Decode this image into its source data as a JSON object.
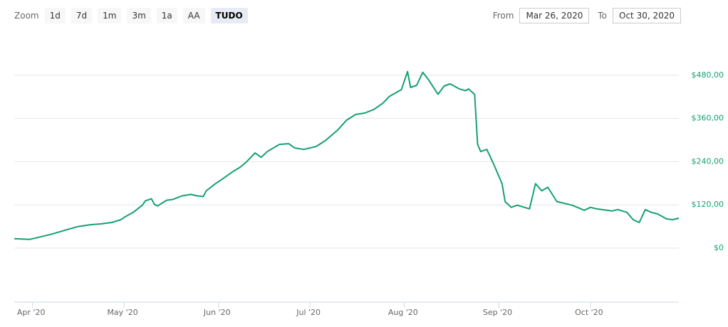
{
  "toolbar": {
    "zoom_label": "Zoom",
    "buttons": [
      "1d",
      "7d",
      "1m",
      "3m",
      "1a",
      "AA",
      "TUDO"
    ],
    "selected": 6,
    "from_label": "From",
    "from_value": "Mar 26, 2020",
    "to_label": "To",
    "to_value": "Oct 30, 2020"
  },
  "chart_data": {
    "type": "line",
    "x": [
      "2020-03-26",
      "2020-03-31",
      "2020-04-02",
      "2020-04-07",
      "2020-04-11",
      "2020-04-16",
      "2020-04-20",
      "2020-04-23",
      "2020-04-27",
      "2020-04-30",
      "2020-05-01",
      "2020-05-04",
      "2020-05-07",
      "2020-05-08",
      "2020-05-10",
      "2020-05-11",
      "2020-05-12",
      "2020-05-15",
      "2020-05-17",
      "2020-05-20",
      "2020-05-23",
      "2020-05-25",
      "2020-05-27",
      "2020-05-28",
      "2020-05-31",
      "2020-06-02",
      "2020-06-06",
      "2020-06-08",
      "2020-06-10",
      "2020-06-13",
      "2020-06-15",
      "2020-06-17",
      "2020-06-21",
      "2020-06-24",
      "2020-06-26",
      "2020-06-29",
      "2020-07-03",
      "2020-07-06",
      "2020-07-10",
      "2020-07-13",
      "2020-07-16",
      "2020-07-19",
      "2020-07-22",
      "2020-07-25",
      "2020-07-27",
      "2020-07-31",
      "2020-08-02",
      "2020-08-03",
      "2020-08-05",
      "2020-08-07",
      "2020-08-09",
      "2020-08-12",
      "2020-08-14",
      "2020-08-16",
      "2020-08-19",
      "2020-08-21",
      "2020-08-22",
      "2020-08-24",
      "2020-08-25",
      "2020-08-26",
      "2020-08-28",
      "2020-08-30",
      "2020-09-02",
      "2020-09-03",
      "2020-09-05",
      "2020-09-07",
      "2020-09-11",
      "2020-09-13",
      "2020-09-15",
      "2020-09-17",
      "2020-09-20",
      "2020-09-25",
      "2020-09-29",
      "2020-10-01",
      "2020-10-03",
      "2020-10-08",
      "2020-10-10",
      "2020-10-13",
      "2020-10-15",
      "2020-10-17",
      "2020-10-19",
      "2020-10-21",
      "2020-10-23",
      "2020-10-26",
      "2020-10-28",
      "2020-10-30"
    ],
    "series": [
      {
        "color": "#16a070",
        "values": [
          26,
          24,
          28,
          38,
          48,
          60,
          65,
          67,
          71,
          79,
          85,
          99,
          119,
          131,
          137,
          121,
          117,
          133,
          135,
          145,
          149,
          145,
          143,
          159,
          179,
          190,
          214,
          224,
          238,
          264,
          252,
          268,
          288,
          290,
          278,
          274,
          282,
          298,
          327,
          355,
          371,
          375,
          385,
          403,
          421,
          440,
          490,
          446,
          452,
          488,
          466,
          427,
          450,
          456,
          442,
          437,
          442,
          427,
          288,
          268,
          274,
          238,
          179,
          129,
          113,
          119,
          109,
          179,
          159,
          169,
          129,
          119,
          105,
          113,
          109,
          103,
          107,
          99,
          79,
          71,
          107,
          99,
          95,
          81,
          79,
          83
        ]
      }
    ],
    "xlim": [
      "2020-03-26",
      "2020-10-30"
    ],
    "xticks": [
      {
        "value": "2020-04-01",
        "label": "Apr '20"
      },
      {
        "value": "2020-05-01",
        "label": "May '20"
      },
      {
        "value": "2020-06-01",
        "label": "Jun '20"
      },
      {
        "value": "2020-07-01",
        "label": "Jul '20"
      },
      {
        "value": "2020-08-01",
        "label": "Aug '20"
      },
      {
        "value": "2020-09-01",
        "label": "Sep '20"
      },
      {
        "value": "2020-10-01",
        "label": "Oct '20"
      }
    ],
    "ylim": [
      -150,
      600
    ],
    "yticks": [
      {
        "value": 0,
        "label": "$0"
      },
      {
        "value": 120,
        "label": "$120,00"
      },
      {
        "value": 240,
        "label": "$240,00"
      },
      {
        "value": 360,
        "label": "$360,00"
      },
      {
        "value": 480,
        "label": "$480,00"
      }
    ],
    "ytick_color": "#16a070",
    "grid": true
  }
}
